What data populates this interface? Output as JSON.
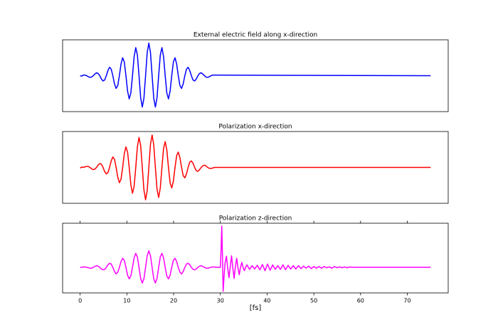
{
  "chart_data": [
    {
      "type": "line",
      "title": "External electric field along x-direction",
      "color": "#0000ff",
      "xlim": [
        -3.75,
        78.75
      ],
      "ylim": [
        -1.1,
        1.1
      ],
      "x": [
        0,
        0.35,
        0.7,
        1.05,
        1.4,
        1.75,
        2.1,
        2.45,
        2.8,
        3.15,
        3.5,
        3.85,
        4.2,
        4.55,
        4.9,
        5.25,
        5.6,
        5.95,
        6.3,
        6.65,
        7,
        7.35,
        7.7,
        8.05,
        8.4,
        8.75,
        9.1,
        9.45,
        9.8,
        10.15,
        10.5,
        10.85,
        11.2,
        11.55,
        11.9,
        12.25,
        12.6,
        12.95,
        13.3,
        13.65,
        14,
        14.35,
        14.7,
        15.05,
        15.4,
        15.75,
        16.1,
        16.45,
        16.8,
        17.15,
        17.5,
        17.85,
        18.2,
        18.55,
        18.9,
        19.25,
        19.6,
        19.95,
        20.3,
        20.65,
        21,
        21.35,
        21.7,
        22.05,
        22.4,
        22.75,
        23.1,
        23.45,
        23.8,
        24.15,
        24.5,
        24.85,
        25.2,
        25.55,
        25.9,
        26.25,
        26.6,
        26.95,
        27.3,
        27.65,
        28,
        28.35,
        28.7,
        75
      ],
      "values": [
        0,
        -0.01,
        0.02,
        0.02,
        0,
        -0.03,
        -0.05,
        -0.04,
        0,
        0.05,
        0.09,
        0.07,
        0,
        -0.1,
        -0.16,
        -0.13,
        0,
        0.16,
        0.26,
        0.2,
        0,
        -0.25,
        -0.39,
        -0.3,
        0,
        0.36,
        0.55,
        0.42,
        0,
        -0.47,
        -0.71,
        -0.53,
        0,
        0.58,
        0.86,
        0.63,
        0,
        -0.67,
        -0.96,
        -0.69,
        0,
        0.71,
        1,
        0.71,
        0,
        -0.69,
        -0.96,
        -0.67,
        0,
        0.63,
        0.86,
        0.58,
        0,
        -0.53,
        -0.71,
        -0.47,
        0,
        0.42,
        0.55,
        0.36,
        0,
        -0.3,
        -0.39,
        -0.25,
        0,
        0.2,
        0.26,
        0.16,
        0,
        -0.13,
        -0.16,
        -0.1,
        0,
        0.07,
        0.09,
        0.05,
        0,
        -0.04,
        -0.05,
        -0.03,
        0,
        0.02,
        0.02,
        0
      ]
    },
    {
      "type": "line",
      "title": "Polarization x-direction",
      "color": "#ff0000",
      "xlim": [
        -3.75,
        78.75
      ],
      "ylim": [
        -1.1,
        1.1
      ],
      "x": [
        0,
        0.35,
        0.7,
        1.05,
        1.4,
        1.75,
        2.1,
        2.45,
        2.8,
        3.15,
        3.5,
        3.85,
        4.2,
        4.55,
        4.9,
        5.25,
        5.6,
        5.95,
        6.3,
        6.65,
        7,
        7.35,
        7.7,
        8.05,
        8.4,
        8.75,
        9.1,
        9.45,
        9.8,
        10.15,
        10.5,
        10.85,
        11.2,
        11.55,
        11.9,
        12.25,
        12.6,
        12.95,
        13.3,
        13.65,
        14,
        14.35,
        14.7,
        15.05,
        15.4,
        15.75,
        16.1,
        16.45,
        16.8,
        17.15,
        17.5,
        17.85,
        18.2,
        18.55,
        18.9,
        19.25,
        19.6,
        19.95,
        20.3,
        20.65,
        21,
        21.35,
        21.7,
        22.05,
        22.4,
        22.75,
        23.1,
        23.45,
        23.8,
        24.15,
        24.5,
        24.85,
        25.2,
        25.55,
        25.9,
        26.25,
        26.6,
        26.95,
        27.3,
        27.65,
        28,
        28.35,
        28.7,
        75
      ],
      "values": [
        -0.02,
        0.01,
        0,
        0.02,
        0.03,
        0.03,
        0,
        -0.04,
        -0.07,
        -0.05,
        0,
        0.07,
        0.12,
        0.1,
        0,
        -0.13,
        -0.2,
        -0.16,
        0,
        0.2,
        0.32,
        0.25,
        0,
        -0.3,
        -0.47,
        -0.36,
        0,
        0.42,
        0.63,
        0.47,
        0,
        -0.53,
        -0.79,
        -0.58,
        0,
        0.63,
        0.92,
        0.67,
        0,
        -0.69,
        -0.99,
        -0.71,
        0,
        0.71,
        0.99,
        0.69,
        0,
        -0.67,
        -0.92,
        -0.63,
        0,
        0.58,
        0.79,
        0.53,
        0,
        -0.47,
        -0.63,
        -0.42,
        0,
        0.36,
        0.47,
        0.3,
        0,
        -0.25,
        -0.32,
        -0.2,
        0,
        0.16,
        0.2,
        0.13,
        0,
        -0.1,
        -0.12,
        -0.07,
        0,
        0.05,
        0.07,
        0.04,
        0,
        -0.03,
        -0.03,
        -0.02,
        0,
        0
      ]
    },
    {
      "type": "line",
      "title": "Polarization z-direction",
      "color": "#ff00ff",
      "xlim": [
        -3.75,
        78.75
      ],
      "ylim": [
        -0.62,
        1.07
      ],
      "xticks": [
        0,
        10,
        20,
        30,
        40,
        50,
        60,
        70
      ],
      "xlabel": "[fs]",
      "x": [
        0,
        0.35,
        0.7,
        1.05,
        1.4,
        1.75,
        2.1,
        2.45,
        2.8,
        3.15,
        3.5,
        3.85,
        4.2,
        4.55,
        4.9,
        5.25,
        5.6,
        5.95,
        6.3,
        6.65,
        7,
        7.35,
        7.7,
        8.05,
        8.4,
        8.75,
        9.1,
        9.45,
        9.8,
        10.15,
        10.5,
        10.85,
        11.2,
        11.55,
        11.9,
        12.25,
        12.6,
        12.95,
        13.3,
        13.65,
        14,
        14.35,
        14.7,
        15.05,
        15.4,
        15.75,
        16.1,
        16.45,
        16.8,
        17.15,
        17.5,
        17.85,
        18.2,
        18.55,
        18.9,
        19.25,
        19.6,
        19.95,
        20.3,
        20.65,
        21,
        21.35,
        21.7,
        22.05,
        22.4,
        22.75,
        23.1,
        23.45,
        23.8,
        24.15,
        24.5,
        24.85,
        25.2,
        25.55,
        25.9,
        26.25,
        26.6,
        26.95,
        27.3,
        27.65,
        28,
        28.35,
        28.7,
        29.4,
        30,
        30.15,
        30.3,
        30.45,
        30.6,
        30.75,
        31,
        31.3,
        31.55,
        31.85,
        32.1,
        32.4,
        32.65,
        32.95,
        33.2,
        33.5,
        33.75,
        34.05,
        34.3,
        34.6,
        34.85,
        35.15,
        35.4,
        35.7,
        36.25,
        36.8,
        37.35,
        37.9,
        38.45,
        39,
        39.55,
        40.1,
        40.65,
        41.2,
        41.75,
        42.3,
        42.85,
        43.4,
        43.95,
        44.5,
        45.05,
        45.6,
        46.15,
        46.7,
        47.25,
        47.8,
        48.35,
        48.9,
        49.45,
        50,
        50.55,
        51.1,
        51.65,
        52.2,
        52.75,
        53.3,
        53.85,
        54.4,
        54.95,
        55.5,
        56.05,
        56.6,
        57.15,
        57.7,
        58.25,
        75
      ],
      "values": [
        0,
        0,
        0.01,
        0.01,
        0,
        -0.01,
        -0.02,
        -0.02,
        0,
        0.02,
        0.04,
        0.03,
        0,
        -0.04,
        -0.06,
        -0.05,
        0,
        0.06,
        0.1,
        0.08,
        0,
        -0.1,
        -0.16,
        -0.12,
        0,
        0.14,
        0.22,
        0.17,
        0,
        -0.19,
        -0.28,
        -0.21,
        0,
        0.23,
        0.34,
        0.25,
        0,
        -0.27,
        -0.38,
        -0.28,
        0,
        0.28,
        0.4,
        0.28,
        0,
        -0.28,
        -0.38,
        -0.27,
        0,
        0.25,
        0.34,
        0.23,
        0,
        -0.21,
        -0.28,
        -0.19,
        0,
        0.17,
        0.22,
        0.14,
        0,
        -0.12,
        -0.16,
        -0.1,
        0,
        0.08,
        0.1,
        0.06,
        0,
        -0.05,
        -0.06,
        -0.04,
        0,
        0.03,
        0.04,
        0.02,
        0,
        -0.02,
        -0.02,
        -0.01,
        0,
        0.01,
        0.01,
        0,
        0,
        0.4,
        1,
        0.3,
        -0.58,
        -0.3,
        0.1,
        0.27,
        0,
        -0.25,
        0,
        0.28,
        0,
        -0.27,
        0,
        0.22,
        0,
        -0.18,
        0,
        0.12,
        0,
        -0.08,
        0,
        0.06,
        -0.05,
        0.04,
        -0.04,
        0.05,
        -0.06,
        0.07,
        -0.08,
        0.08,
        -0.07,
        0.06,
        -0.05,
        0.04,
        -0.05,
        0.06,
        -0.06,
        0.05,
        -0.04,
        0.04,
        -0.04,
        0.04,
        -0.03,
        0.03,
        -0.02,
        0.03,
        -0.03,
        0.02,
        -0.02,
        0.02,
        -0.02,
        0.02,
        -0.01,
        0.01,
        -0.02,
        0.02,
        -0.01,
        0.01,
        -0.01,
        0.01,
        -0.01,
        0.01,
        0,
        0
      ]
    }
  ]
}
